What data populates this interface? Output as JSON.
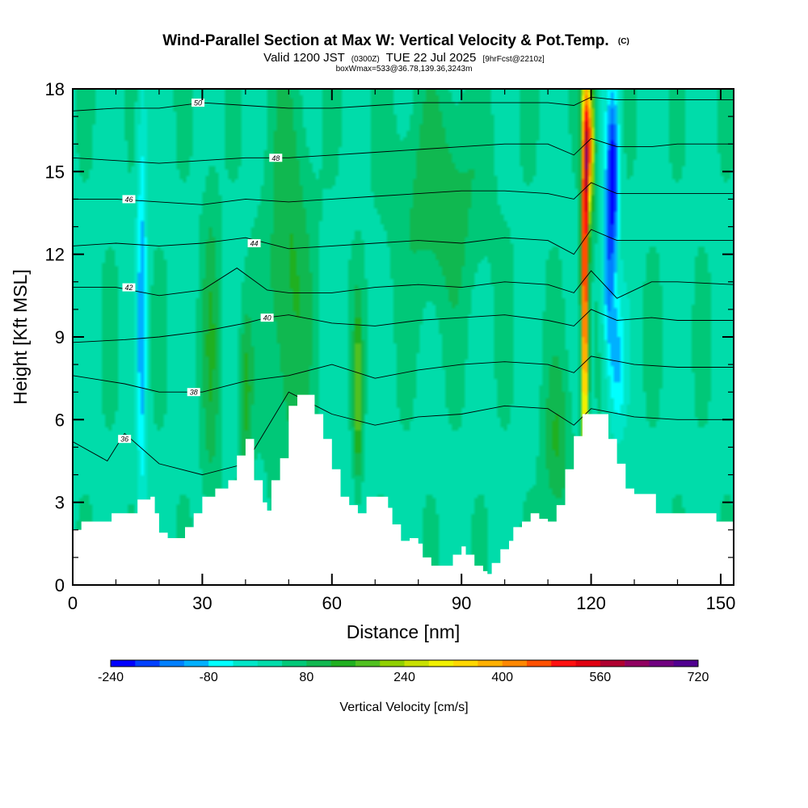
{
  "chart_data": {
    "type": "heatmap",
    "title": "Wind-Parallel Section at Max W: Vertical Velocity & Pot.Temp.",
    "title_mark": "(C)",
    "subtitle_parts": [
      "Valid 1200 JST",
      "(0300Z)",
      "TUE 22 Jul 2025",
      "[9hrFcst@2210z]"
    ],
    "subtitle2": "boxWmax=533@36.78,139.36,3243m",
    "xlabel": "Distance [nm]",
    "ylabel": "Height [Kft MSL]",
    "xlim": [
      0,
      153
    ],
    "ylim": [
      0,
      18
    ],
    "x_ticks": [
      0,
      30,
      60,
      90,
      120,
      150
    ],
    "y_ticks": [
      0,
      3,
      6,
      9,
      12,
      15,
      18
    ],
    "colorbar": {
      "label": "Vertical Velocity [cm/s]",
      "ticks": [
        -240,
        -80,
        80,
        240,
        400,
        560,
        720
      ],
      "range": [
        -240,
        720
      ],
      "colors": [
        "#0000ff",
        "#0040ff",
        "#0080ff",
        "#00b0ff",
        "#00ffff",
        "#00e6c8",
        "#00dcaa",
        "#00c878",
        "#10b850",
        "#20b020",
        "#50c020",
        "#90d000",
        "#c8e000",
        "#f0f000",
        "#ffd700",
        "#ffb000",
        "#ff8800",
        "#ff5000",
        "#ff1010",
        "#e00010",
        "#b00030",
        "#900060",
        "#700080",
        "#500090"
      ]
    },
    "terrain_profile": [
      [
        0,
        2
      ],
      [
        2,
        2.3
      ],
      [
        8,
        2.3
      ],
      [
        9,
        2.6
      ],
      [
        14,
        2.6
      ],
      [
        15,
        3.1
      ],
      [
        18,
        3.2
      ],
      [
        19,
        2.6
      ],
      [
        20,
        1.9
      ],
      [
        22,
        1.7
      ],
      [
        25,
        1.7
      ],
      [
        26,
        2.1
      ],
      [
        28,
        2.6
      ],
      [
        30,
        3.2
      ],
      [
        33,
        3.5
      ],
      [
        36,
        3.8
      ],
      [
        38,
        4.7
      ],
      [
        40,
        5.3
      ],
      [
        42,
        3.8
      ],
      [
        44,
        3
      ],
      [
        45,
        2.7
      ],
      [
        46,
        3.8
      ],
      [
        48,
        4.6
      ],
      [
        50,
        6.5
      ],
      [
        52,
        6.9
      ],
      [
        54,
        6.9
      ],
      [
        56,
        6.2
      ],
      [
        58,
        5.3
      ],
      [
        60,
        4.2
      ],
      [
        62,
        3.2
      ],
      [
        64,
        2.9
      ],
      [
        66,
        2.6
      ],
      [
        68,
        3.2
      ],
      [
        72,
        3.2
      ],
      [
        73,
        2.8
      ],
      [
        74,
        2.2
      ],
      [
        76,
        1.6
      ],
      [
        78,
        1.7
      ],
      [
        80,
        1.5
      ],
      [
        81,
        1.0
      ],
      [
        83,
        0.7
      ],
      [
        87,
        0.7
      ],
      [
        88,
        1.1
      ],
      [
        90,
        1.4
      ],
      [
        91,
        1.1
      ],
      [
        93,
        0.7
      ],
      [
        95,
        0.5
      ],
      [
        96,
        0.4
      ],
      [
        97,
        0.8
      ],
      [
        99,
        1.3
      ],
      [
        101,
        1.6
      ],
      [
        102,
        2.1
      ],
      [
        104,
        2.3
      ],
      [
        106,
        2.6
      ],
      [
        108,
        2.4
      ],
      [
        110,
        2.3
      ],
      [
        112,
        2.9
      ],
      [
        114,
        4.2
      ],
      [
        116,
        5.4
      ],
      [
        118,
        6.2
      ],
      [
        122,
        6.2
      ],
      [
        124,
        5.3
      ],
      [
        126,
        4.4
      ],
      [
        128,
        3.5
      ],
      [
        130,
        3.3
      ],
      [
        133,
        3.3
      ],
      [
        135,
        2.6
      ],
      [
        140,
        2.6
      ],
      [
        142,
        2.6
      ],
      [
        148,
        2.6
      ],
      [
        149,
        2.3
      ],
      [
        153,
        2.3
      ]
    ],
    "w_anomalies": [
      {
        "x": 16,
        "y": 10,
        "value": -100,
        "sx": 1.2,
        "sy": 8
      },
      {
        "x": 32,
        "y": 8.5,
        "value": 110,
        "sx": 2,
        "sy": 6
      },
      {
        "x": 40,
        "y": 7,
        "value": 140,
        "sx": 1.5,
        "sy": 3
      },
      {
        "x": 50,
        "y": 11,
        "value": 130,
        "sx": 5,
        "sy": 7
      },
      {
        "x": 66,
        "y": 7,
        "value": 200,
        "sx": 1,
        "sy": 3
      },
      {
        "x": 85,
        "y": 14,
        "value": 110,
        "sx": 10,
        "sy": 4
      },
      {
        "x": 112,
        "y": 5,
        "value": 120,
        "sx": 3,
        "sy": 3
      },
      {
        "x": 118.5,
        "y": 11,
        "value": 560,
        "sx": 0.8,
        "sy": 7
      },
      {
        "x": 119.5,
        "y": 16,
        "value": 420,
        "sx": 1.2,
        "sy": 2.5
      },
      {
        "x": 125,
        "y": 15,
        "value": -220,
        "sx": 1.5,
        "sy": 3
      },
      {
        "x": 124,
        "y": 11,
        "value": -120,
        "sx": 1.5,
        "sy": 3
      },
      {
        "x": 126,
        "y": 8,
        "value": -80,
        "sx": 2,
        "sy": 2.5
      }
    ],
    "theta_contours": [
      {
        "value": 36,
        "label": "36",
        "label_at": [
          12,
          5.3
        ],
        "points": [
          [
            0,
            5.2
          ],
          [
            8,
            4.5
          ],
          [
            12,
            5.5
          ],
          [
            20,
            4.4
          ],
          [
            30,
            4.0
          ],
          [
            40,
            4.4
          ],
          [
            50,
            7.0
          ],
          [
            60,
            6.2
          ],
          [
            70,
            5.8
          ],
          [
            80,
            6.1
          ],
          [
            90,
            6.2
          ],
          [
            100,
            6.5
          ],
          [
            110,
            6.4
          ],
          [
            116,
            5.8
          ],
          [
            120,
            6.4
          ],
          [
            130,
            6.1
          ],
          [
            140,
            6.0
          ],
          [
            153,
            6.0
          ]
        ]
      },
      {
        "value": 38,
        "label": "38",
        "label_at": [
          28,
          7.0
        ],
        "points": [
          [
            0,
            7.6
          ],
          [
            12,
            7.3
          ],
          [
            20,
            7.0
          ],
          [
            30,
            7.0
          ],
          [
            40,
            7.4
          ],
          [
            50,
            7.6
          ],
          [
            60,
            8.0
          ],
          [
            70,
            7.5
          ],
          [
            80,
            7.8
          ],
          [
            90,
            8.0
          ],
          [
            100,
            8.1
          ],
          [
            110,
            8.0
          ],
          [
            116,
            7.7
          ],
          [
            120,
            8.3
          ],
          [
            130,
            8.0
          ],
          [
            140,
            7.9
          ],
          [
            153,
            7.9
          ]
        ]
      },
      {
        "value": 40,
        "label": "40",
        "label_at": [
          45,
          9.7
        ],
        "points": [
          [
            0,
            8.8
          ],
          [
            12,
            8.9
          ],
          [
            20,
            9.0
          ],
          [
            30,
            9.2
          ],
          [
            40,
            9.5
          ],
          [
            45,
            9.7
          ],
          [
            50,
            9.8
          ],
          [
            60,
            9.5
          ],
          [
            70,
            9.4
          ],
          [
            80,
            9.6
          ],
          [
            90,
            9.7
          ],
          [
            100,
            9.8
          ],
          [
            110,
            9.6
          ],
          [
            116,
            9.4
          ],
          [
            120,
            10.0
          ],
          [
            126,
            9.6
          ],
          [
            134,
            9.7
          ],
          [
            140,
            9.6
          ],
          [
            153,
            9.6
          ]
        ]
      },
      {
        "value": 42,
        "label": "42",
        "label_at": [
          13,
          10.8
        ],
        "points": [
          [
            0,
            10.8
          ],
          [
            10,
            10.8
          ],
          [
            20,
            10.5
          ],
          [
            30,
            10.7
          ],
          [
            38,
            11.5
          ],
          [
            45,
            10.7
          ],
          [
            50,
            10.6
          ],
          [
            60,
            10.6
          ],
          [
            70,
            10.8
          ],
          [
            80,
            10.9
          ],
          [
            90,
            10.8
          ],
          [
            100,
            11.0
          ],
          [
            110,
            10.9
          ],
          [
            116,
            10.6
          ],
          [
            120,
            11.4
          ],
          [
            126,
            10.4
          ],
          [
            134,
            11.0
          ],
          [
            140,
            11.0
          ],
          [
            153,
            10.9
          ]
        ]
      },
      {
        "value": 44,
        "label": "44",
        "label_at": [
          42,
          12.4
        ],
        "points": [
          [
            0,
            12.3
          ],
          [
            10,
            12.4
          ],
          [
            20,
            12.3
          ],
          [
            30,
            12.4
          ],
          [
            40,
            12.6
          ],
          [
            50,
            12.2
          ],
          [
            60,
            12.3
          ],
          [
            70,
            12.4
          ],
          [
            80,
            12.5
          ],
          [
            90,
            12.4
          ],
          [
            100,
            12.6
          ],
          [
            110,
            12.5
          ],
          [
            116,
            12.0
          ],
          [
            120,
            12.9
          ],
          [
            126,
            12.5
          ],
          [
            134,
            12.5
          ],
          [
            140,
            12.5
          ],
          [
            153,
            12.5
          ]
        ]
      },
      {
        "value": 46,
        "label": "46",
        "label_at": [
          13,
          14.0
        ],
        "points": [
          [
            0,
            14.0
          ],
          [
            10,
            14.0
          ],
          [
            20,
            13.9
          ],
          [
            30,
            13.8
          ],
          [
            40,
            14.0
          ],
          [
            50,
            13.9
          ],
          [
            60,
            14.0
          ],
          [
            70,
            14.1
          ],
          [
            80,
            14.2
          ],
          [
            90,
            14.3
          ],
          [
            100,
            14.3
          ],
          [
            110,
            14.2
          ],
          [
            116,
            14.0
          ],
          [
            120,
            14.6
          ],
          [
            126,
            14.2
          ],
          [
            134,
            14.2
          ],
          [
            140,
            14.2
          ],
          [
            153,
            14.2
          ]
        ]
      },
      {
        "value": 48,
        "label": "48",
        "label_at": [
          47,
          15.5
        ],
        "points": [
          [
            0,
            15.5
          ],
          [
            10,
            15.4
          ],
          [
            20,
            15.3
          ],
          [
            30,
            15.4
          ],
          [
            40,
            15.5
          ],
          [
            50,
            15.5
          ],
          [
            60,
            15.6
          ],
          [
            70,
            15.7
          ],
          [
            80,
            15.8
          ],
          [
            90,
            15.9
          ],
          [
            100,
            16.0
          ],
          [
            110,
            16.0
          ],
          [
            116,
            15.6
          ],
          [
            120,
            16.2
          ],
          [
            126,
            15.9
          ],
          [
            134,
            15.9
          ],
          [
            140,
            16.0
          ],
          [
            153,
            16.0
          ]
        ]
      },
      {
        "value": 50,
        "label": "50",
        "label_at": [
          29,
          17.5
        ],
        "points": [
          [
            0,
            17.2
          ],
          [
            10,
            17.3
          ],
          [
            20,
            17.3
          ],
          [
            30,
            17.5
          ],
          [
            40,
            17.4
          ],
          [
            50,
            17.3
          ],
          [
            60,
            17.3
          ],
          [
            70,
            17.4
          ],
          [
            80,
            17.5
          ],
          [
            90,
            17.5
          ],
          [
            100,
            17.5
          ],
          [
            110,
            17.5
          ],
          [
            116,
            17.4
          ],
          [
            120,
            17.7
          ],
          [
            126,
            17.6
          ],
          [
            134,
            17.6
          ],
          [
            140,
            17.6
          ],
          [
            153,
            17.6
          ]
        ]
      }
    ]
  }
}
